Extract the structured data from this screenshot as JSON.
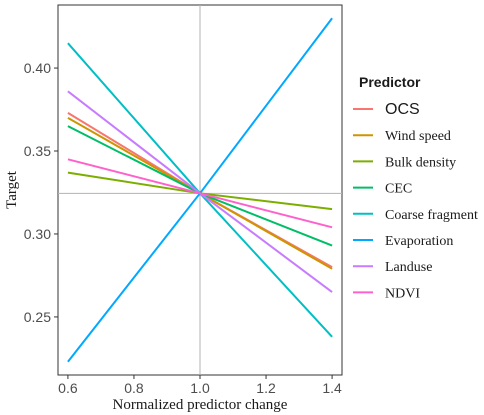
{
  "chart_data": {
    "type": "line",
    "xlabel": "Normalized predictor change",
    "ylabel": "Target",
    "xlim": [
      0.57,
      1.43
    ],
    "ylim": [
      0.215,
      0.438
    ],
    "xticks": [
      0.6,
      0.8,
      1.0,
      1.2,
      1.4
    ],
    "xtick_labels": [
      "0.6",
      "0.8",
      "1.0",
      "1.2",
      "1.4"
    ],
    "yticks": [
      0.25,
      0.3,
      0.35,
      0.4
    ],
    "ytick_labels": [
      "0.25",
      "0.30",
      "0.35",
      "0.40"
    ],
    "reference_lines": {
      "x": 1.0,
      "y": 0.3245
    },
    "grid": false,
    "legend_title": "Predictor",
    "legend_position": "right",
    "series": [
      {
        "name": "OCS",
        "color": "#F8766D",
        "x": [
          0.6,
          1.0,
          1.4
        ],
        "values": [
          0.373,
          0.3245,
          0.28
        ]
      },
      {
        "name": "Wind speed",
        "color": "#CD9600",
        "x": [
          0.6,
          1.0,
          1.4
        ],
        "values": [
          0.37,
          0.3245,
          0.279
        ]
      },
      {
        "name": "Bulk density",
        "color": "#7CAE00",
        "x": [
          0.6,
          1.0,
          1.4
        ],
        "values": [
          0.337,
          0.3245,
          0.315
        ]
      },
      {
        "name": "CEC",
        "color": "#00BE67",
        "x": [
          0.6,
          1.0,
          1.4
        ],
        "values": [
          0.365,
          0.3245,
          0.293
        ]
      },
      {
        "name": "Coarse fragment",
        "color": "#00BFC4",
        "x": [
          0.6,
          1.0,
          1.4
        ],
        "values": [
          0.415,
          0.3245,
          0.238
        ]
      },
      {
        "name": "Evaporation",
        "color": "#00A9FF",
        "x": [
          0.6,
          1.0,
          1.4
        ],
        "values": [
          0.223,
          0.3245,
          0.43
        ]
      },
      {
        "name": "Landuse",
        "color": "#C77CFF",
        "x": [
          0.6,
          1.0,
          1.4
        ],
        "values": [
          0.386,
          0.3245,
          0.265
        ]
      },
      {
        "name": "NDVI",
        "color": "#FF61CC",
        "x": [
          0.6,
          1.0,
          1.4
        ],
        "values": [
          0.345,
          0.3245,
          0.304
        ]
      }
    ]
  }
}
